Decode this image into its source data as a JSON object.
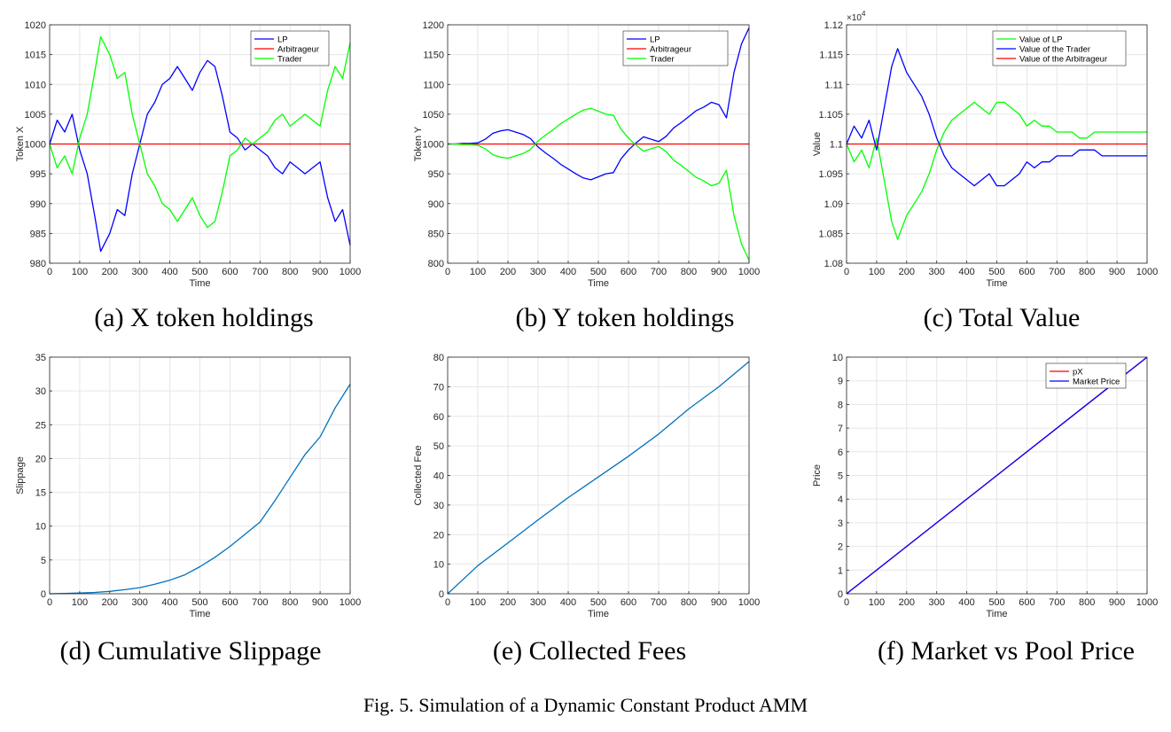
{
  "figure_caption": "Fig. 5.  Simulation of a Dynamic Constant Product AMM",
  "panel_captions": [
    "(a) X token holdings",
    "(b) Y token holdings",
    "(c) Total Value",
    "(d) Cumulative Slippage",
    "(e) Collected Fees",
    "(f) Market vs Pool Price"
  ],
  "colors": {
    "blue": "#0000ff",
    "red": "#ff0000",
    "green": "#00ff00",
    "matlab_blue": "#0072bd",
    "grid": "#e6e6e6",
    "axes": "#262626"
  },
  "chart_data": [
    {
      "type": "line",
      "xlabel": "Time",
      "ylabel": "Token X",
      "xlim": [
        0,
        1000
      ],
      "ylim": [
        980,
        1020
      ],
      "xticks": [
        0,
        100,
        200,
        300,
        400,
        500,
        600,
        700,
        800,
        900,
        1000
      ],
      "yticks": [
        980,
        985,
        990,
        995,
        1000,
        1005,
        1010,
        1015,
        1020
      ],
      "grid": true,
      "legend_position": "top-right",
      "x": [
        0,
        25,
        50,
        75,
        100,
        125,
        150,
        170,
        200,
        225,
        250,
        275,
        300,
        325,
        350,
        375,
        400,
        425,
        450,
        475,
        500,
        525,
        550,
        575,
        600,
        625,
        650,
        675,
        700,
        725,
        750,
        775,
        800,
        825,
        850,
        875,
        900,
        925,
        950,
        975,
        1000
      ],
      "series": [
        {
          "name": "LP",
          "color": "blue",
          "values": [
            1000,
            1004,
            1002,
            1005,
            999,
            995,
            988,
            982,
            985,
            989,
            988,
            995,
            1000,
            1005,
            1007,
            1010,
            1011,
            1013,
            1011,
            1009,
            1012,
            1014,
            1013,
            1008,
            1002,
            1001,
            999,
            1000,
            999,
            998,
            996,
            995,
            997,
            996,
            995,
            996,
            997,
            991,
            987,
            989,
            983
          ]
        },
        {
          "name": "Arbitrageur",
          "color": "red",
          "values": [
            1000,
            1000,
            1000,
            1000,
            1000,
            1000,
            1000,
            1000,
            1000,
            1000,
            1000,
            1000,
            1000,
            1000,
            1000,
            1000,
            1000,
            1000,
            1000,
            1000,
            1000,
            1000,
            1000,
            1000,
            1000,
            1000,
            1000,
            1000,
            1000,
            1000,
            1000,
            1000,
            1000,
            1000,
            1000,
            1000,
            1000,
            1000,
            1000,
            1000,
            1000
          ]
        },
        {
          "name": "Trader",
          "color": "green",
          "values": [
            1000,
            996,
            998,
            995,
            1001,
            1005,
            1012,
            1018,
            1015,
            1011,
            1012,
            1005,
            1000,
            995,
            993,
            990,
            989,
            987,
            989,
            991,
            988,
            986,
            987,
            992,
            998,
            999,
            1001,
            1000,
            1001,
            1002,
            1004,
            1005,
            1003,
            1004,
            1005,
            1004,
            1003,
            1009,
            1013,
            1011,
            1017
          ]
        }
      ]
    },
    {
      "type": "line",
      "xlabel": "Time",
      "ylabel": "Token Y",
      "xlim": [
        0,
        1000
      ],
      "ylim": [
        800,
        1200
      ],
      "xticks": [
        0,
        100,
        200,
        300,
        400,
        500,
        600,
        700,
        800,
        900,
        1000
      ],
      "yticks": [
        800,
        850,
        900,
        950,
        1000,
        1050,
        1100,
        1150,
        1200
      ],
      "grid": true,
      "legend_position": "top-right",
      "x": [
        0,
        25,
        50,
        75,
        100,
        125,
        150,
        175,
        200,
        225,
        250,
        275,
        300,
        325,
        350,
        375,
        400,
        425,
        450,
        475,
        500,
        525,
        550,
        575,
        600,
        625,
        650,
        675,
        700,
        725,
        750,
        775,
        800,
        825,
        850,
        875,
        900,
        925,
        950,
        975,
        1000
      ],
      "series": [
        {
          "name": "LP",
          "color": "blue",
          "values": [
            1000,
            1000,
            1001,
            1001,
            1002,
            1008,
            1018,
            1022,
            1024,
            1020,
            1016,
            1009,
            995,
            985,
            976,
            966,
            958,
            950,
            943,
            940,
            945,
            950,
            952,
            975,
            990,
            1002,
            1012,
            1008,
            1004,
            1013,
            1027,
            1036,
            1046,
            1056,
            1062,
            1070,
            1066,
            1044,
            1120,
            1168,
            1195
          ]
        },
        {
          "name": "Arbitrageur",
          "color": "red",
          "values": [
            1000,
            1000,
            1000,
            1000,
            1000,
            1000,
            1000,
            1000,
            1000,
            1000,
            1000,
            1000,
            1000,
            1000,
            1000,
            1000,
            1000,
            1000,
            1000,
            1000,
            1000,
            1000,
            1000,
            1000,
            1000,
            1000,
            1000,
            1000,
            1000,
            1000,
            1000,
            1000,
            1000,
            1000,
            1000,
            1000,
            1000,
            1000,
            1000,
            1000,
            1000
          ]
        },
        {
          "name": "Trader",
          "color": "green",
          "values": [
            1000,
            1000,
            999,
            999,
            998,
            992,
            982,
            978,
            976,
            980,
            984,
            991,
            1005,
            1015,
            1024,
            1034,
            1042,
            1050,
            1057,
            1060,
            1055,
            1050,
            1048,
            1025,
            1010,
            998,
            988,
            992,
            996,
            987,
            973,
            964,
            954,
            944,
            938,
            930,
            934,
            956,
            880,
            832,
            805
          ]
        }
      ]
    },
    {
      "type": "line",
      "xlabel": "Time",
      "ylabel": "Value",
      "y_exponent": "10^4",
      "xlim": [
        0,
        1000
      ],
      "ylim": [
        1.08,
        1.12
      ],
      "xticks": [
        0,
        100,
        200,
        300,
        400,
        500,
        600,
        700,
        800,
        900,
        1000
      ],
      "yticks": [
        1.08,
        1.085,
        1.09,
        1.095,
        1.1,
        1.105,
        1.11,
        1.115,
        1.12
      ],
      "grid": true,
      "legend_position": "top-right",
      "x": [
        0,
        25,
        50,
        75,
        100,
        125,
        150,
        170,
        200,
        225,
        250,
        275,
        300,
        325,
        350,
        375,
        400,
        425,
        450,
        475,
        500,
        525,
        550,
        575,
        600,
        625,
        650,
        675,
        700,
        725,
        750,
        775,
        800,
        825,
        850,
        875,
        900,
        925,
        950,
        975,
        1000
      ],
      "series": [
        {
          "name": "Value of LP",
          "color": "green",
          "values": [
            1.1,
            1.097,
            1.099,
            1.096,
            1.101,
            1.094,
            1.087,
            1.084,
            1.088,
            1.09,
            1.092,
            1.095,
            1.099,
            1.102,
            1.104,
            1.105,
            1.106,
            1.107,
            1.106,
            1.105,
            1.107,
            1.107,
            1.106,
            1.105,
            1.103,
            1.104,
            1.103,
            1.103,
            1.102,
            1.102,
            1.102,
            1.101,
            1.101,
            1.102,
            1.102,
            1.102,
            1.102,
            1.102,
            1.102,
            1.102,
            1.102
          ]
        },
        {
          "name": "Value of the Trader",
          "color": "blue",
          "values": [
            1.1,
            1.103,
            1.101,
            1.104,
            1.099,
            1.106,
            1.113,
            1.116,
            1.112,
            1.11,
            1.108,
            1.105,
            1.101,
            1.098,
            1.096,
            1.095,
            1.094,
            1.093,
            1.094,
            1.095,
            1.093,
            1.093,
            1.094,
            1.095,
            1.097,
            1.096,
            1.097,
            1.097,
            1.098,
            1.098,
            1.098,
            1.099,
            1.099,
            1.099,
            1.098,
            1.098,
            1.098,
            1.098,
            1.098,
            1.098,
            1.098
          ]
        },
        {
          "name": "Value of the Arbitrageur",
          "color": "red",
          "values": [
            1.1,
            1.1,
            1.1,
            1.1,
            1.1,
            1.1,
            1.1,
            1.1,
            1.1,
            1.1,
            1.1,
            1.1,
            1.1,
            1.1,
            1.1,
            1.1,
            1.1,
            1.1,
            1.1,
            1.1,
            1.1,
            1.1,
            1.1,
            1.1,
            1.1,
            1.1,
            1.1,
            1.1,
            1.1,
            1.1,
            1.1,
            1.1,
            1.1,
            1.1,
            1.1,
            1.1,
            1.1,
            1.1,
            1.1,
            1.1,
            1.1
          ]
        }
      ]
    },
    {
      "type": "line",
      "xlabel": "Time",
      "ylabel": "Slippage",
      "xlim": [
        0,
        1000
      ],
      "ylim": [
        0,
        35
      ],
      "xticks": [
        0,
        100,
        200,
        300,
        400,
        500,
        600,
        700,
        800,
        900,
        1000
      ],
      "yticks": [
        0,
        5,
        10,
        15,
        20,
        25,
        30,
        35
      ],
      "grid": true,
      "x": [
        0,
        50,
        100,
        150,
        200,
        250,
        300,
        350,
        400,
        450,
        500,
        550,
        600,
        650,
        700,
        750,
        800,
        850,
        900,
        950,
        1000
      ],
      "series": [
        {
          "color": "matlab_blue",
          "values": [
            0,
            0.05,
            0.1,
            0.2,
            0.35,
            0.6,
            0.9,
            1.4,
            2.0,
            2.8,
            4.0,
            5.4,
            7.0,
            8.8,
            10.6,
            13.8,
            17.2,
            20.6,
            23.2,
            27.5,
            31
          ]
        }
      ]
    },
    {
      "type": "line",
      "xlabel": "Time",
      "ylabel": "Collected Fee",
      "xlim": [
        0,
        1000
      ],
      "ylim": [
        0,
        80
      ],
      "xticks": [
        0,
        100,
        200,
        300,
        400,
        500,
        600,
        700,
        800,
        900,
        1000
      ],
      "yticks": [
        0,
        10,
        20,
        30,
        40,
        50,
        60,
        70,
        80
      ],
      "grid": true,
      "x": [
        0,
        100,
        200,
        300,
        400,
        500,
        600,
        700,
        800,
        900,
        1000
      ],
      "series": [
        {
          "color": "matlab_blue",
          "values": [
            0,
            9.5,
            17.2,
            25,
            32.5,
            39.5,
            46.5,
            54,
            62.5,
            70,
            78.5
          ]
        }
      ]
    },
    {
      "type": "line",
      "xlabel": "Time",
      "ylabel": "Price",
      "xlim": [
        0,
        1000
      ],
      "ylim": [
        0,
        10
      ],
      "xticks": [
        0,
        100,
        200,
        300,
        400,
        500,
        600,
        700,
        800,
        900,
        1000
      ],
      "yticks": [
        0,
        1,
        2,
        3,
        4,
        5,
        6,
        7,
        8,
        9,
        10
      ],
      "grid": true,
      "legend_position": "top-right",
      "x": [
        0,
        1000
      ],
      "series": [
        {
          "name": "pX",
          "color": "red",
          "values": [
            0,
            10
          ]
        },
        {
          "name": "Market Price",
          "color": "blue",
          "values": [
            0,
            10
          ]
        }
      ]
    }
  ]
}
